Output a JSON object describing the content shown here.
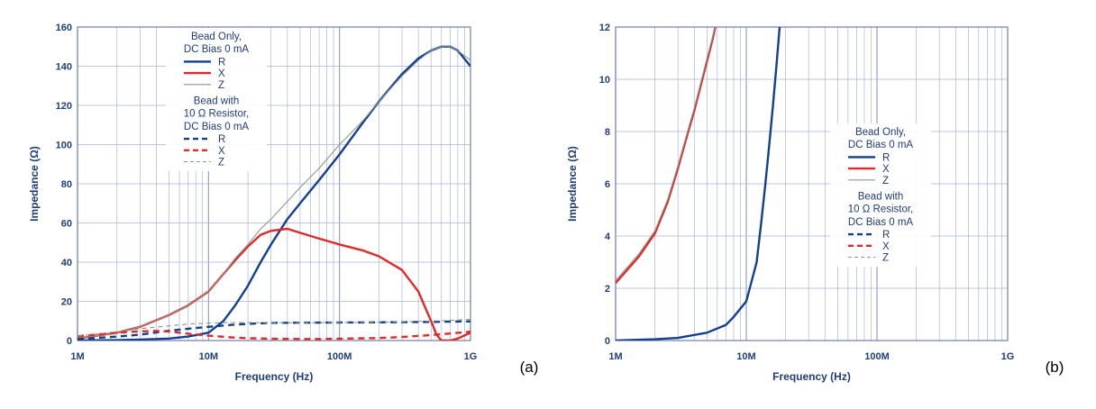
{
  "chart_data": [
    {
      "type": "line",
      "panel_label": "(a)",
      "xlabel": "Frequency (Hz)",
      "ylabel": "Impedance (Ω)",
      "x_scale": "log",
      "xlim": [
        1000000,
        1000000000
      ],
      "ylim": [
        0,
        160
      ],
      "x_ticks": [
        {
          "value": 1000000,
          "label": "1M"
        },
        {
          "value": 10000000,
          "label": "10M"
        },
        {
          "value": 100000000,
          "label": "100M"
        },
        {
          "value": 1000000000,
          "label": "1G"
        }
      ],
      "y_ticks": [
        {
          "value": 0,
          "label": "0"
        },
        {
          "value": 20,
          "label": "20"
        },
        {
          "value": 40,
          "label": "40"
        },
        {
          "value": 60,
          "label": "60"
        },
        {
          "value": 80,
          "label": "80"
        },
        {
          "value": 100,
          "label": "100"
        },
        {
          "value": 120,
          "label": "120"
        },
        {
          "value": 140,
          "label": "140"
        },
        {
          "value": 160,
          "label": "160"
        }
      ],
      "grid": true,
      "legend_position": "top-center",
      "legend": {
        "group1_title": [
          "Bead Only,",
          "DC Bias 0 mA"
        ],
        "group2_title": [
          "Bead with",
          "10 Ω Resistor,",
          "DC Bias 0 mA"
        ]
      },
      "series": [
        {
          "name": "R",
          "group": 1,
          "color": "#12408f",
          "style": "solid",
          "x": [
            1000000,
            2000000,
            3000000,
            5000000,
            7000000,
            10000000,
            13000000,
            16000000,
            20000000,
            25000000,
            30000000,
            40000000,
            50000000,
            70000000,
            100000000,
            150000000,
            200000000,
            300000000,
            400000000,
            500000000,
            600000000,
            700000000,
            800000000,
            1000000000
          ],
          "y": [
            0,
            0.2,
            0.5,
            1,
            2,
            4,
            10,
            18,
            28,
            40,
            49,
            62,
            70,
            82,
            95,
            111,
            122,
            136,
            144,
            148,
            150,
            150,
            148,
            140
          ]
        },
        {
          "name": "X",
          "group": 1,
          "color": "#e02a2a",
          "style": "solid",
          "x": [
            1000000,
            2000000,
            3000000,
            5000000,
            7000000,
            10000000,
            13000000,
            16000000,
            20000000,
            25000000,
            30000000,
            40000000,
            50000000,
            70000000,
            100000000,
            150000000,
            200000000,
            300000000,
            400000000,
            450000000,
            500000000,
            550000000,
            600000000,
            700000000,
            800000000,
            1000000000
          ],
          "y": [
            1,
            4,
            7,
            13,
            18,
            25,
            34,
            41,
            48,
            54,
            56,
            57,
            55,
            52,
            49,
            46,
            43,
            36,
            25,
            17,
            10,
            3,
            0,
            0,
            1,
            4
          ]
        },
        {
          "name": "Z",
          "group": 1,
          "color": "#8a9a8a",
          "style": "solid",
          "x": [
            1000000,
            2000000,
            3000000,
            5000000,
            7000000,
            10000000,
            13000000,
            16000000,
            20000000,
            25000000,
            30000000,
            40000000,
            50000000,
            70000000,
            100000000,
            150000000,
            200000000,
            300000000,
            400000000,
            500000000,
            600000000,
            700000000,
            800000000,
            1000000000
          ],
          "y": [
            1,
            4,
            7,
            13,
            18,
            25,
            34,
            42,
            49,
            57,
            62,
            71,
            78,
            88,
            100,
            112,
            122,
            135,
            143,
            148,
            150,
            150,
            148,
            143
          ]
        },
        {
          "name": "R",
          "group": 2,
          "color": "#12408f",
          "style": "dashed",
          "x": [
            1000000,
            2000000,
            3000000,
            5000000,
            7000000,
            10000000,
            15000000,
            20000000,
            30000000,
            50000000,
            100000000,
            200000000,
            500000000,
            1000000000
          ],
          "y": [
            0.7,
            2,
            3,
            5,
            6,
            7,
            8,
            8.5,
            9,
            9.1,
            9.2,
            9.3,
            9.5,
            9.8
          ]
        },
        {
          "name": "X",
          "group": 2,
          "color": "#e02a2a",
          "style": "dashed",
          "x": [
            1000000,
            2000000,
            3000000,
            4000000,
            5000000,
            7000000,
            10000000,
            15000000,
            20000000,
            30000000,
            50000000,
            70000000,
            100000000,
            200000000,
            300000000,
            500000000,
            700000000,
            1000000000
          ],
          "y": [
            2.2,
            4,
            4.7,
            4.9,
            4.6,
            3.5,
            2.5,
            1.6,
            1.2,
            0.9,
            0.8,
            0.8,
            0.9,
            1.3,
            1.8,
            2.8,
            3.6,
            4.5
          ]
        },
        {
          "name": "Z",
          "group": 2,
          "color": "#8a9a8a",
          "style": "dashed",
          "x": [
            1000000,
            2000000,
            3000000,
            5000000,
            7000000,
            10000000,
            15000000,
            20000000,
            30000000,
            50000000,
            100000000,
            200000000,
            300000000,
            500000000,
            700000000,
            1000000000
          ],
          "y": [
            2.3,
            4.5,
            6,
            7.5,
            8.4,
            8.9,
            9.2,
            9.2,
            9.1,
            9.1,
            9.2,
            9.4,
            9.6,
            10,
            10.3,
            10.8
          ]
        }
      ]
    },
    {
      "type": "line",
      "panel_label": "(b)",
      "xlabel": "Frequency (Hz)",
      "ylabel": "Impedance (Ω)",
      "x_scale": "log",
      "xlim": [
        1000000,
        1000000000
      ],
      "ylim": [
        0,
        12
      ],
      "x_ticks": [
        {
          "value": 1000000,
          "label": "1M"
        },
        {
          "value": 10000000,
          "label": "10M"
        },
        {
          "value": 100000000,
          "label": "100M"
        },
        {
          "value": 1000000000,
          "label": "1G"
        }
      ],
      "y_ticks": [
        {
          "value": 0,
          "label": "0"
        },
        {
          "value": 2,
          "label": "2"
        },
        {
          "value": 4,
          "label": "4"
        },
        {
          "value": 6,
          "label": "6"
        },
        {
          "value": 8,
          "label": "8"
        },
        {
          "value": 10,
          "label": "10"
        },
        {
          "value": 12,
          "label": "12"
        }
      ],
      "grid": true,
      "legend_position": "center-right",
      "legend": {
        "group1_title": [
          "Bead Only,",
          "DC Bias 0 mA"
        ],
        "group2_title": [
          "Bead with",
          "10 Ω Resistor,",
          "DC Bias 0 mA"
        ]
      },
      "series": [
        {
          "name": "R",
          "group": 1,
          "color": "#12408f",
          "style": "solid",
          "x": [
            1000000,
            2000000,
            3000000,
            5000000,
            7000000,
            8000000,
            10000000,
            12000000,
            13000000,
            14000000,
            15000000,
            16000000,
            17000000,
            18000000
          ],
          "y": [
            0,
            0.05,
            0.1,
            0.3,
            0.6,
            0.9,
            1.5,
            3,
            4.5,
            6,
            7.5,
            9,
            10.5,
            12
          ]
        },
        {
          "name": "X",
          "group": 1,
          "color": "#e02a2a",
          "style": "solid",
          "x": [
            1000000,
            1500000,
            2000000,
            2500000,
            3000000,
            3500000,
            4000000,
            4500000,
            5000000,
            5500000,
            5800000
          ],
          "y": [
            2.2,
            3.2,
            4.1,
            5.3,
            6.6,
            7.8,
            8.8,
            9.8,
            10.7,
            11.5,
            12
          ]
        },
        {
          "name": "Z",
          "group": 1,
          "color": "#8a9a8a",
          "style": "solid",
          "x": [
            1000000,
            1500000,
            2000000,
            2500000,
            3000000,
            3500000,
            4000000,
            4500000,
            5000000,
            5500000,
            5800000
          ],
          "y": [
            2.3,
            3.3,
            4.2,
            5.4,
            6.7,
            7.9,
            8.9,
            9.9,
            10.8,
            11.6,
            12
          ]
        }
      ]
    }
  ]
}
